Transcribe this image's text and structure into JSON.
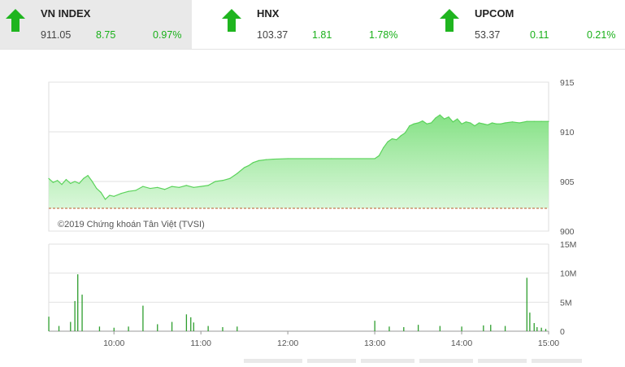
{
  "indices": [
    {
      "name": "VN INDEX",
      "value": "911.05",
      "change": "8.75",
      "percent": "0.97%",
      "direction": "up",
      "active": true
    },
    {
      "name": "HNX",
      "value": "103.37",
      "change": "1.81",
      "percent": "1.78%",
      "direction": "up",
      "active": false
    },
    {
      "name": "UPCOM",
      "value": "53.37",
      "change": "0.11",
      "percent": "0.21%",
      "direction": "up",
      "active": false
    }
  ],
  "colors": {
    "up": "#1fb51f",
    "area": "#8ee48e",
    "line": "#5bd35b",
    "ref": "#b85a2a",
    "volume": "#2e9e2e"
  },
  "chart_data": [
    {
      "type": "area",
      "title": "",
      "watermark": "©2019 Chứng khoán Tân Việt (TVSI)",
      "xlabel": "",
      "ylabel": "",
      "ylim": [
        900,
        915
      ],
      "yticks": [
        "915",
        "910",
        "905",
        "900"
      ],
      "reference_value": 902.3,
      "x_range": [
        "09:15",
        "15:00"
      ],
      "series": [
        {
          "values": [
            [
              "09:15",
              905.3
            ],
            [
              "09:18",
              904.9
            ],
            [
              "09:21",
              905.1
            ],
            [
              "09:24",
              904.7
            ],
            [
              "09:27",
              905.2
            ],
            [
              "09:30",
              904.8
            ],
            [
              "09:33",
              905.0
            ],
            [
              "09:36",
              904.8
            ],
            [
              "09:39",
              905.3
            ],
            [
              "09:42",
              905.6
            ],
            [
              "09:45",
              905.0
            ],
            [
              "09:48",
              904.3
            ],
            [
              "09:51",
              903.9
            ],
            [
              "09:54",
              903.2
            ],
            [
              "09:57",
              903.6
            ],
            [
              "10:00",
              903.5
            ],
            [
              "10:05",
              903.8
            ],
            [
              "10:10",
              904.0
            ],
            [
              "10:15",
              904.1
            ],
            [
              "10:20",
              904.5
            ],
            [
              "10:25",
              904.3
            ],
            [
              "10:30",
              904.4
            ],
            [
              "10:35",
              904.2
            ],
            [
              "10:40",
              904.5
            ],
            [
              "10:45",
              904.4
            ],
            [
              "10:50",
              904.6
            ],
            [
              "10:55",
              904.4
            ],
            [
              "11:00",
              904.5
            ],
            [
              "11:05",
              904.6
            ],
            [
              "11:10",
              905.0
            ],
            [
              "11:15",
              905.1
            ],
            [
              "11:20",
              905.3
            ],
            [
              "11:25",
              905.8
            ],
            [
              "11:30",
              906.4
            ],
            [
              "11:33",
              906.6
            ],
            [
              "11:36",
              906.9
            ],
            [
              "11:40",
              907.1
            ],
            [
              "11:45",
              907.2
            ],
            [
              "11:50",
              907.25
            ],
            [
              "12:00",
              907.3
            ],
            [
              "12:30",
              907.3
            ],
            [
              "13:00",
              907.3
            ],
            [
              "13:03",
              907.6
            ],
            [
              "13:06",
              908.4
            ],
            [
              "13:09",
              909.0
            ],
            [
              "13:12",
              909.3
            ],
            [
              "13:15",
              909.2
            ],
            [
              "13:18",
              909.6
            ],
            [
              "13:21",
              909.9
            ],
            [
              "13:24",
              910.6
            ],
            [
              "13:27",
              910.8
            ],
            [
              "13:30",
              910.9
            ],
            [
              "13:33",
              911.1
            ],
            [
              "13:36",
              910.8
            ],
            [
              "13:39",
              910.9
            ],
            [
              "13:42",
              911.4
            ],
            [
              "13:45",
              911.7
            ],
            [
              "13:48",
              911.3
            ],
            [
              "13:51",
              911.5
            ],
            [
              "13:54",
              911.0
            ],
            [
              "13:57",
              911.3
            ],
            [
              "14:00",
              910.8
            ],
            [
              "14:03",
              911.0
            ],
            [
              "14:06",
              910.9
            ],
            [
              "14:09",
              910.6
            ],
            [
              "14:12",
              910.9
            ],
            [
              "14:15",
              910.8
            ],
            [
              "14:18",
              910.7
            ],
            [
              "14:21",
              910.9
            ],
            [
              "14:24",
              910.8
            ],
            [
              "14:27",
              910.8
            ],
            [
              "14:30",
              910.9
            ],
            [
              "14:35",
              911.0
            ],
            [
              "14:40",
              910.9
            ],
            [
              "14:45",
              911.05
            ],
            [
              "14:50",
              911.05
            ],
            [
              "14:55",
              911.05
            ],
            [
              "15:00",
              911.05
            ]
          ]
        }
      ]
    },
    {
      "type": "bar",
      "title": "",
      "xlabel": "",
      "ylabel": "",
      "ylim": [
        0,
        15000000
      ],
      "yticks": [
        "15M",
        "10M",
        "5M",
        "0"
      ],
      "xticks": [
        "10:00",
        "11:00",
        "12:00",
        "13:00",
        "14:00",
        "15:00"
      ],
      "series": [
        {
          "values": [
            [
              "09:15",
              2500000
            ],
            [
              "09:22",
              900000
            ],
            [
              "09:30",
              1600000
            ],
            [
              "09:33",
              5200000
            ],
            [
              "09:35",
              9800000
            ],
            [
              "09:38",
              6300000
            ],
            [
              "09:50",
              800000
            ],
            [
              "10:00",
              600000
            ],
            [
              "10:10",
              800000
            ],
            [
              "10:20",
              4400000
            ],
            [
              "10:30",
              1200000
            ],
            [
              "10:40",
              1600000
            ],
            [
              "10:50",
              2900000
            ],
            [
              "10:53",
              2400000
            ],
            [
              "10:55",
              1500000
            ],
            [
              "11:05",
              900000
            ],
            [
              "11:15",
              700000
            ],
            [
              "11:25",
              800000
            ],
            [
              "13:00",
              1800000
            ],
            [
              "13:10",
              800000
            ],
            [
              "13:20",
              700000
            ],
            [
              "13:30",
              1100000
            ],
            [
              "13:45",
              900000
            ],
            [
              "14:00",
              800000
            ],
            [
              "14:15",
              1000000
            ],
            [
              "14:20",
              1100000
            ],
            [
              "14:30",
              900000
            ],
            [
              "14:45",
              9200000
            ],
            [
              "14:47",
              3200000
            ],
            [
              "14:50",
              1400000
            ],
            [
              "14:52",
              700000
            ],
            [
              "14:55",
              600000
            ],
            [
              "14:58",
              400000
            ]
          ]
        }
      ]
    }
  ]
}
